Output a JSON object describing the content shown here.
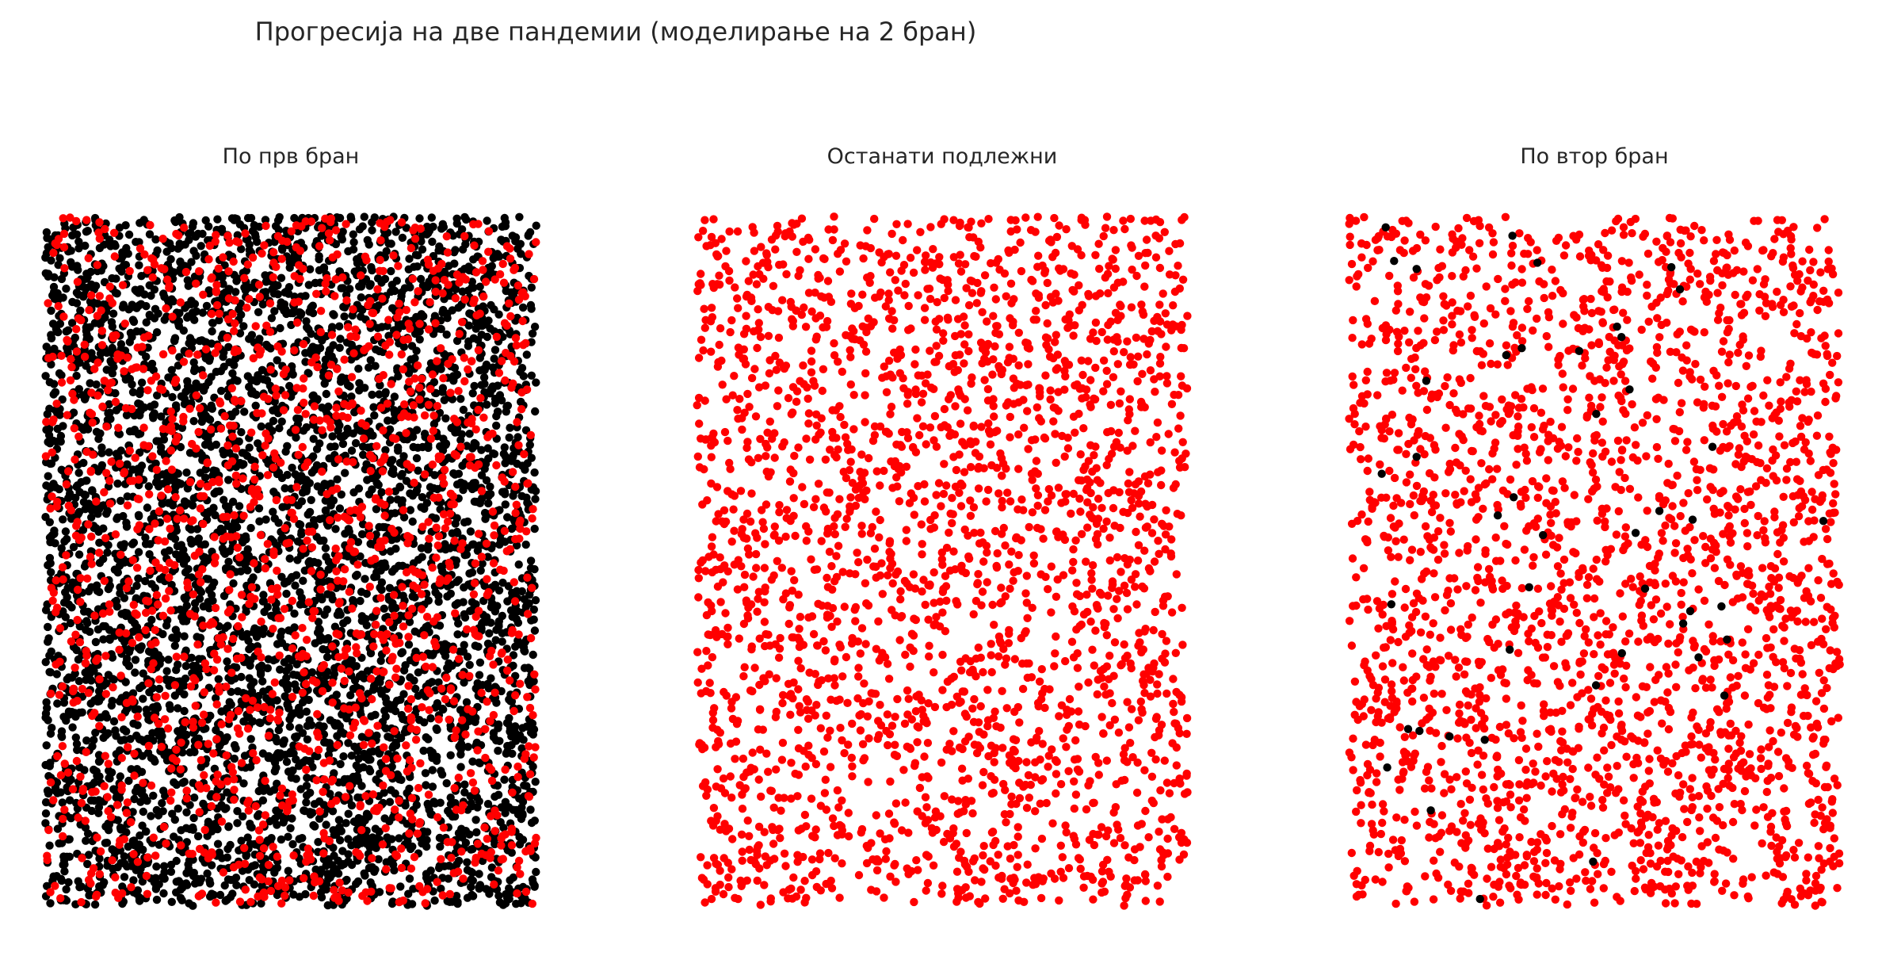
{
  "figure": {
    "suptitle": "Прогресија на две пандемии (моделирање на 2 бран)"
  },
  "colors": {
    "infected": "#ff0000",
    "recovered": "#000000",
    "background": "#ffffff"
  },
  "chart_data": [
    {
      "type": "scatter",
      "title": "По прв бран",
      "xlabel": "",
      "ylabel": "",
      "axis": "off",
      "grid": false,
      "xlim": [
        0,
        1
      ],
      "ylim": [
        0,
        1
      ],
      "series": [
        {
          "color": "#000000",
          "count": 5000
        },
        {
          "color": "#ff0000",
          "count": 1500
        }
      ]
    },
    {
      "type": "scatter",
      "title": "Останати подлежни",
      "xlabel": "",
      "ylabel": "",
      "axis": "off",
      "grid": false,
      "xlim": [
        0,
        1
      ],
      "ylim": [
        0,
        1
      ],
      "series": [
        {
          "color": "#ff0000",
          "count": 2400
        }
      ]
    },
    {
      "type": "scatter",
      "title": "По втор бран",
      "xlabel": "",
      "ylabel": "",
      "axis": "off",
      "grid": false,
      "xlim": [
        0,
        1
      ],
      "ylim": [
        0,
        1
      ],
      "series": [
        {
          "color": "#ff0000",
          "count": 2400
        },
        {
          "color": "#000000",
          "count": 45
        }
      ]
    }
  ]
}
